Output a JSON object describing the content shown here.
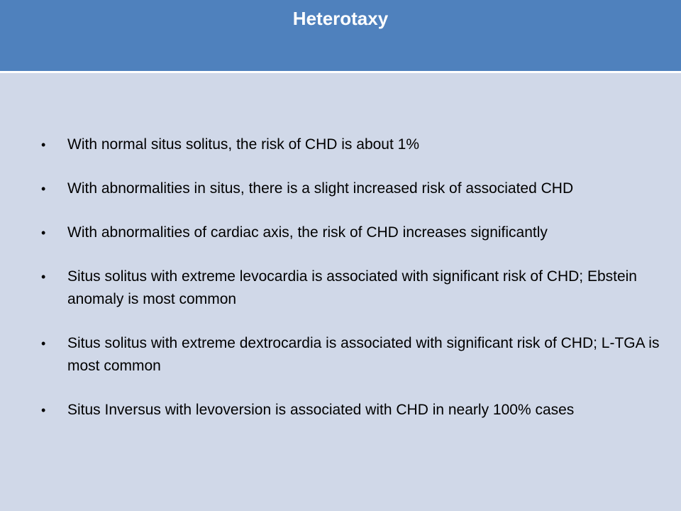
{
  "slide": {
    "title": "Heterotaxy",
    "bullet_symbol": "•",
    "bullets": [
      "With normal situs solitus, the risk of CHD is about 1%",
      "With abnormalities in situs, there is a slight increased risk of associated CHD",
      "With abnormalities of cardiac axis, the risk of CHD increases significantly",
      "Situs solitus with extreme levocardia is associated with significant risk of CHD; Ebstein anomaly is most common",
      "Situs solitus with extreme dextrocardia is associated with significant risk of CHD; L-TGA is most common",
      "Situs Inversus with levoversion is associated with CHD in nearly 100% cases"
    ]
  },
  "colors": {
    "title_bar": "#4f81bd",
    "background": "#d0d8e8",
    "title_text": "#ffffff",
    "body_text": "#000000"
  }
}
